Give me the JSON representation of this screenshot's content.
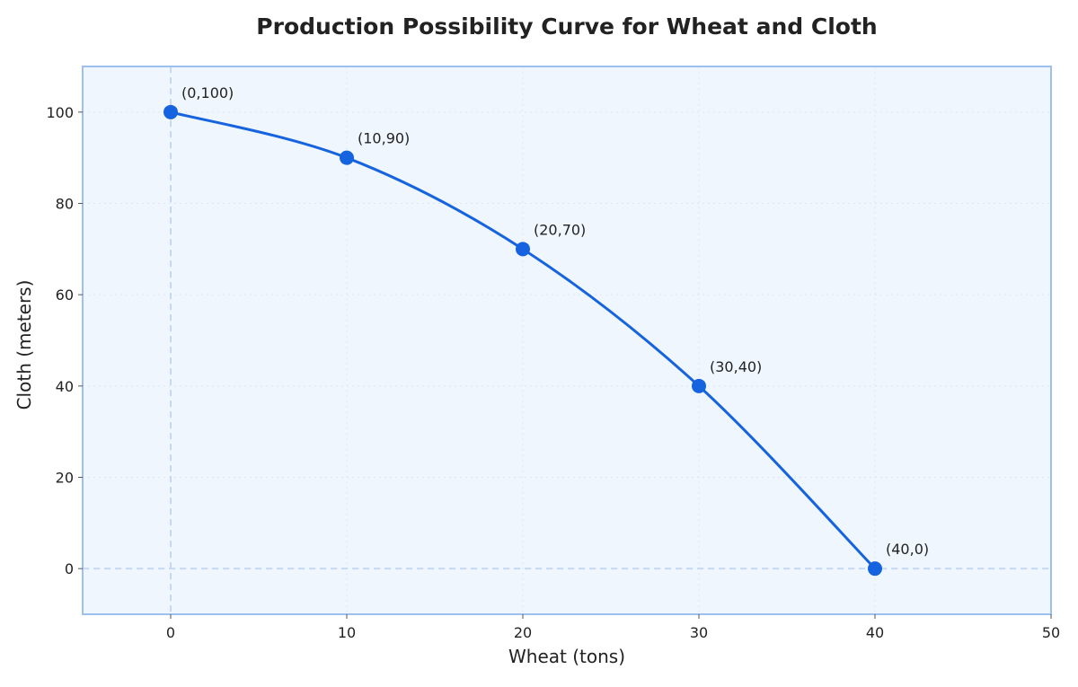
{
  "chart_data": {
    "type": "line",
    "title": "Production Possibility Curve for Wheat and Cloth",
    "xlabel": "Wheat (tons)",
    "ylabel": "Cloth (meters)",
    "xlim": [
      -5,
      50
    ],
    "ylim": [
      -10,
      110
    ],
    "xticks": [
      "0",
      "10",
      "20",
      "30",
      "40",
      "50"
    ],
    "yticks": [
      "0",
      "20",
      "40",
      "60",
      "80",
      "100"
    ],
    "grid": true,
    "series": [
      {
        "x": [
          0,
          10,
          20,
          30,
          40
        ],
        "y": [
          100,
          90,
          70,
          40,
          0
        ],
        "labels": [
          "(0,100)",
          "(10,90)",
          "(20,70)",
          "(30,40)",
          "(40,0)"
        ],
        "color": "#1663e0"
      }
    ],
    "reference_lines": {
      "x": 0,
      "y": 0
    },
    "colors": {
      "line": "#1663e0",
      "plot_background": "#f0f6fd",
      "frame": "#9ec0ef",
      "reference": "#c5d9f5",
      "grid": "#dde7f3"
    }
  }
}
